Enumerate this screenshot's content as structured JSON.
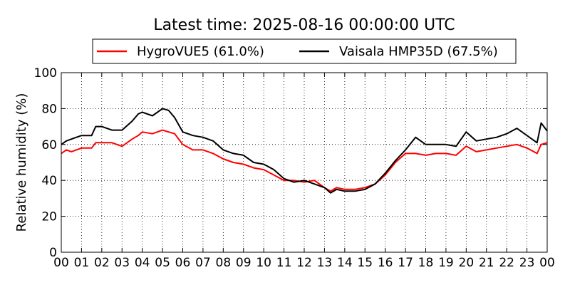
{
  "chart_data": {
    "type": "line",
    "title": "Latest time: 2025-08-16 00:00:00 UTC",
    "xlabel": "",
    "ylabel": "Relative humidity (%)",
    "ylim": [
      0,
      100
    ],
    "xlim": [
      0,
      24
    ],
    "yticks": [
      0,
      20,
      40,
      60,
      80,
      100
    ],
    "ytick_labels": [
      "0",
      "20",
      "40",
      "60",
      "80",
      "100"
    ],
    "xticks": [
      0,
      1,
      2,
      3,
      4,
      5,
      6,
      7,
      8,
      9,
      10,
      11,
      12,
      13,
      14,
      15,
      16,
      17,
      18,
      19,
      20,
      21,
      22,
      23,
      24
    ],
    "xtick_labels": [
      "00",
      "01",
      "02",
      "03",
      "04",
      "05",
      "06",
      "07",
      "08",
      "09",
      "10",
      "11",
      "12",
      "13",
      "14",
      "15",
      "16",
      "17",
      "18",
      "19",
      "20",
      "21",
      "22",
      "23",
      "00"
    ],
    "grid": true,
    "legend_position": "top-center, outside",
    "series": [
      {
        "name": "HygroVUE5 (61.0%)",
        "color": "#ff0000",
        "x": [
          0,
          0.25,
          0.5,
          1,
          1.5,
          1.7,
          2,
          2.5,
          3,
          3.5,
          3.8,
          4,
          4.5,
          5,
          5.3,
          5.6,
          6,
          6.5,
          7,
          7.5,
          8,
          8.5,
          9,
          9.5,
          10,
          10.5,
          11,
          11.5,
          12,
          12.5,
          13,
          13.3,
          13.6,
          14,
          14.5,
          15,
          15.5,
          16,
          16.5,
          17,
          17.5,
          18,
          18.5,
          19,
          19.5,
          20,
          20.5,
          21,
          21.5,
          22,
          22.5,
          23,
          23.5,
          23.7,
          24
        ],
        "y": [
          55,
          57,
          56,
          58,
          58,
          61,
          61,
          61,
          59,
          63,
          65,
          67,
          66,
          68,
          67,
          66,
          60,
          57,
          57,
          55,
          52,
          50,
          49,
          47,
          46,
          43,
          40,
          40,
          39,
          40,
          36,
          34,
          36,
          35,
          35,
          36,
          38,
          43,
          50,
          55,
          55,
          54,
          55,
          55,
          54,
          59,
          56,
          57,
          58,
          59,
          60,
          58,
          55,
          60,
          61
        ]
      },
      {
        "name": "Vaisala HMP35D (67.5%)",
        "color": "#000000",
        "x": [
          0,
          0.25,
          0.5,
          1,
          1.5,
          1.7,
          2,
          2.5,
          3,
          3.5,
          3.8,
          4,
          4.5,
          5,
          5.3,
          5.6,
          6,
          6.5,
          7,
          7.5,
          8,
          8.5,
          9,
          9.5,
          10,
          10.5,
          11,
          11.5,
          12,
          12.5,
          13,
          13.3,
          13.6,
          14,
          14.5,
          15,
          15.5,
          16,
          16.5,
          17,
          17.5,
          18,
          18.5,
          19,
          19.5,
          20,
          20.5,
          21,
          21.5,
          22,
          22.5,
          23,
          23.5,
          23.7,
          24
        ],
        "y": [
          60,
          62,
          63,
          65,
          65,
          70,
          70,
          68,
          68,
          73,
          77,
          78,
          76,
          80,
          79,
          75,
          67,
          65,
          64,
          62,
          57,
          55,
          54,
          50,
          49,
          46,
          41,
          39,
          40,
          38,
          36,
          33,
          35,
          34,
          34,
          35,
          38,
          44,
          51,
          57,
          64,
          60,
          60,
          60,
          59,
          67,
          62,
          63,
          64,
          66,
          69,
          65,
          61,
          72,
          67.5
        ]
      }
    ]
  }
}
